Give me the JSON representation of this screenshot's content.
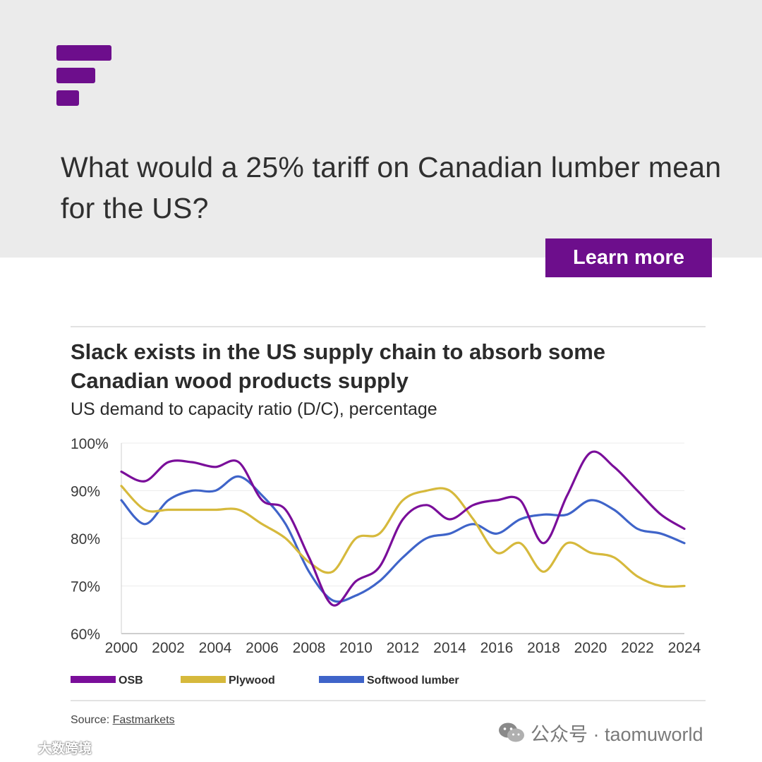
{
  "header": {
    "headline": "What would a 25% tariff on Canadian lumber mean for the US?",
    "cta_label": "Learn more"
  },
  "colors": {
    "brand": "#6d0e8c",
    "band_bg": "#ebebeb",
    "osb": "#7a0e9a",
    "plywood": "#d6b93c",
    "softwood": "#3f64c9"
  },
  "chart_data": {
    "type": "line",
    "title": "Slack exists in the US supply chain to absorb some Canadian wood products supply",
    "subtitle": "US demand to capacity ratio (D/C), percentage",
    "xlabel": "",
    "ylabel": "",
    "x": [
      2000,
      2001,
      2002,
      2003,
      2004,
      2005,
      2006,
      2007,
      2008,
      2009,
      2010,
      2011,
      2012,
      2013,
      2014,
      2015,
      2016,
      2017,
      2018,
      2019,
      2020,
      2021,
      2022,
      2023,
      2024
    ],
    "x_ticks": [
      "2000",
      "2002",
      "2004",
      "2006",
      "2008",
      "2010",
      "2012",
      "2014",
      "2016",
      "2018",
      "2020",
      "2022",
      "2024"
    ],
    "y_ticks": [
      "60%",
      "70%",
      "80%",
      "90%",
      "100%"
    ],
    "xlim": [
      2000,
      2024
    ],
    "ylim": [
      60,
      100
    ],
    "grid": true,
    "legend_position": "bottom",
    "series": [
      {
        "name": "OSB",
        "color": "#7a0e9a",
        "values": [
          94,
          92,
          96,
          96,
          95,
          96,
          88,
          86,
          76,
          66,
          71,
          74,
          84,
          87,
          84,
          87,
          88,
          88,
          79,
          89,
          98,
          95,
          90,
          85,
          82
        ]
      },
      {
        "name": "Plywood",
        "color": "#d6b93c",
        "values": [
          91,
          86,
          86,
          86,
          86,
          86,
          83,
          80,
          75,
          73,
          80,
          81,
          88,
          90,
          90,
          84,
          77,
          79,
          73,
          79,
          77,
          76,
          72,
          70,
          70
        ]
      },
      {
        "name": "Softwood lumber",
        "color": "#3f64c9",
        "values": [
          88,
          83,
          88,
          90,
          90,
          93,
          89,
          83,
          73,
          67,
          68,
          71,
          76,
          80,
          81,
          83,
          81,
          84,
          85,
          85,
          88,
          86,
          82,
          81,
          79
        ]
      }
    ]
  },
  "footer": {
    "source_prefix": "Source: ",
    "source_link": "Fastmarkets"
  },
  "watermark": {
    "right_text": "公众号 · taomuworld",
    "left_text": "大数跨境"
  }
}
